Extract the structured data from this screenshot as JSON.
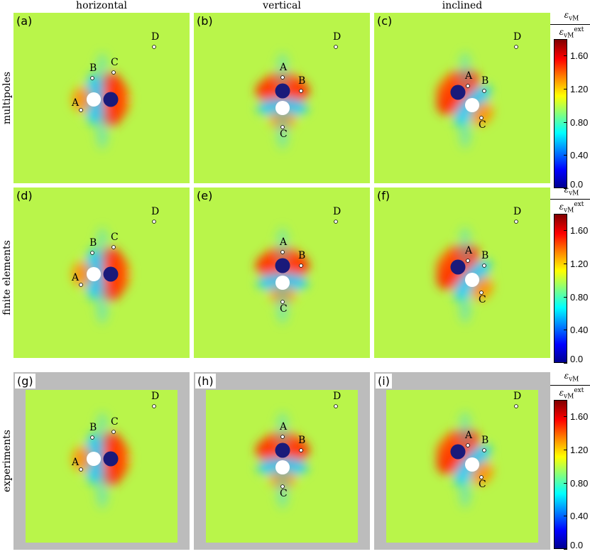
{
  "columns": [
    "horizontal",
    "vertical",
    "inclined"
  ],
  "rows": [
    "multipoles",
    "finite elements",
    "experiments"
  ],
  "panel_labels": [
    "(a)",
    "(b)",
    "(c)",
    "(d)",
    "(e)",
    "(f)",
    "(g)",
    "(h)",
    "(i)"
  ],
  "point_labels": [
    "A",
    "B",
    "C",
    "D"
  ],
  "colorbar": {
    "title_num": "ε",
    "title_num_sub": "vM",
    "title_den": "ε",
    "title_den_sub": "vM",
    "title_den_sup": "ext",
    "ticks": [
      "1.60",
      "1.20",
      "0.80",
      "0.40",
      "0.0"
    ],
    "min": 0.0,
    "max": 1.8,
    "colormap": "jet"
  },
  "colors": {
    "background_field": "#b9f54a",
    "hole_white": "#ffffff",
    "inclusion_dark": "#1a1a7a",
    "frame_grey": "#bcbcbc"
  },
  "chart_data": {
    "type": "heatmap",
    "layout": "3x3 grid",
    "quantity": "normalized von Mises strain",
    "color_range": [
      0.0,
      1.8
    ],
    "panels": [
      {
        "label": "(a)",
        "row": "multipoles",
        "column": "horizontal",
        "points": [
          "A",
          "B",
          "C",
          "D"
        ]
      },
      {
        "label": "(b)",
        "row": "multipoles",
        "column": "vertical",
        "points": [
          "A",
          "B",
          "C",
          "D"
        ]
      },
      {
        "label": "(c)",
        "row": "multipoles",
        "column": "inclined",
        "points": [
          "A",
          "B",
          "C",
          "D"
        ]
      },
      {
        "label": "(d)",
        "row": "finite elements",
        "column": "horizontal",
        "points": [
          "A",
          "B",
          "C",
          "D"
        ]
      },
      {
        "label": "(e)",
        "row": "finite elements",
        "column": "vertical",
        "points": [
          "A",
          "B",
          "C",
          "D"
        ]
      },
      {
        "label": "(f)",
        "row": "finite elements",
        "column": "inclined",
        "points": [
          "A",
          "B",
          "C",
          "D"
        ]
      },
      {
        "label": "(g)",
        "row": "experiments",
        "column": "horizontal",
        "points": [
          "A",
          "B",
          "C",
          "D"
        ]
      },
      {
        "label": "(h)",
        "row": "experiments",
        "column": "vertical",
        "points": [
          "A",
          "B",
          "C",
          "D"
        ]
      },
      {
        "label": "(i)",
        "row": "experiments",
        "column": "inclined",
        "points": [
          "A",
          "B",
          "C",
          "D"
        ]
      }
    ]
  }
}
